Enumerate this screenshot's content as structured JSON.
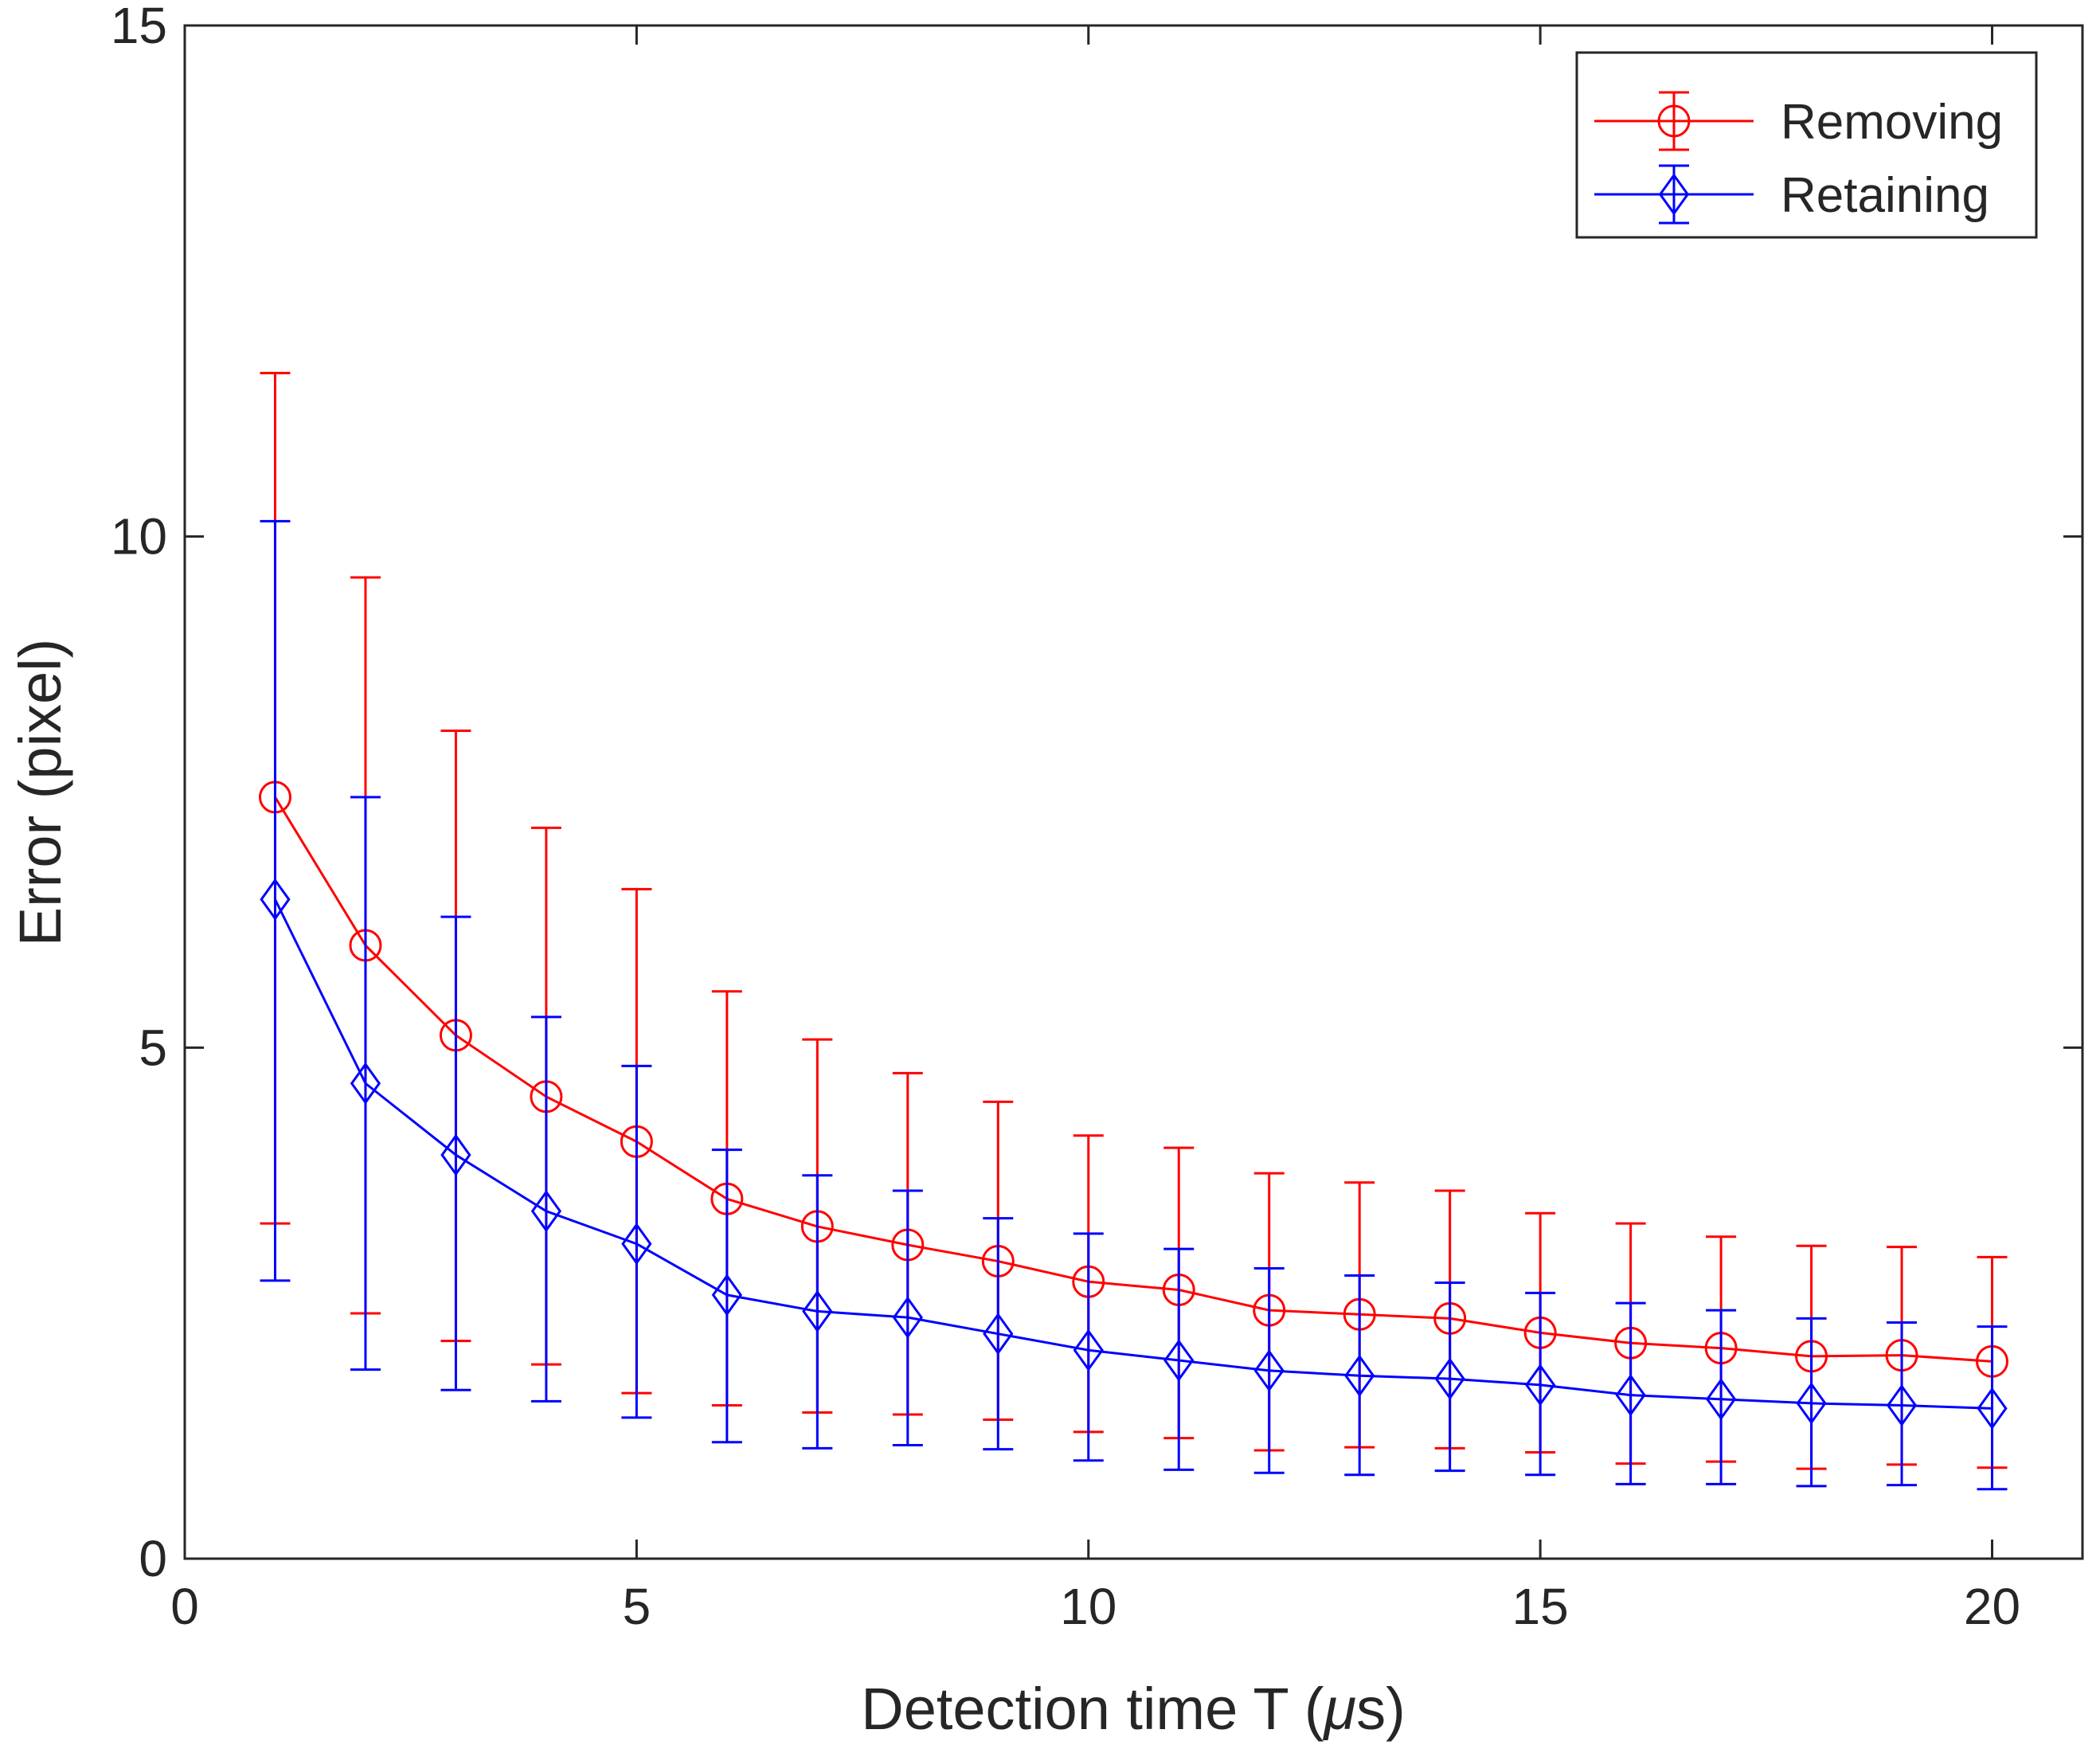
{
  "chart_data": {
    "type": "line",
    "title": "",
    "xlabel": "Detection time T (",
    "xlabel_symbol": "μ",
    "xlabel_suffix": "s)",
    "ylabel": "Error (pixel)",
    "xlim": [
      0,
      21
    ],
    "ylim": [
      0,
      15
    ],
    "xticks": [
      0,
      5,
      10,
      15,
      20
    ],
    "yticks": [
      0,
      5,
      10,
      15
    ],
    "grid": false,
    "legend_position": "top-right",
    "x": [
      1,
      2,
      3,
      4,
      5,
      6,
      7,
      8,
      9,
      10,
      11,
      12,
      13,
      14,
      15,
      16,
      17,
      18,
      19,
      20
    ],
    "series": [
      {
        "name": "Removing",
        "color": "#ff0000",
        "marker": "circle",
        "values": [
          7.45,
          6.0,
          5.12,
          4.52,
          4.08,
          3.52,
          3.25,
          3.07,
          2.91,
          2.71,
          2.63,
          2.43,
          2.39,
          2.35,
          2.21,
          2.11,
          2.06,
          1.98,
          1.99,
          1.93
        ],
        "upper": [
          11.6,
          9.6,
          8.1,
          7.15,
          6.55,
          5.55,
          5.08,
          4.75,
          4.47,
          4.14,
          4.02,
          3.77,
          3.68,
          3.6,
          3.38,
          3.28,
          3.15,
          3.06,
          3.05,
          2.95
        ],
        "lower": [
          3.28,
          2.4,
          2.13,
          1.9,
          1.62,
          1.5,
          1.43,
          1.41,
          1.36,
          1.24,
          1.18,
          1.06,
          1.09,
          1.08,
          1.04,
          0.93,
          0.95,
          0.88,
          0.92,
          0.89
        ]
      },
      {
        "name": "Retaining",
        "color": "#0000ff",
        "marker": "diamond",
        "values": [
          6.45,
          4.65,
          3.95,
          3.4,
          3.08,
          2.58,
          2.42,
          2.36,
          2.2,
          2.04,
          1.94,
          1.84,
          1.79,
          1.76,
          1.7,
          1.6,
          1.56,
          1.52,
          1.5,
          1.47
        ],
        "upper": [
          10.15,
          7.45,
          6.28,
          5.3,
          4.82,
          4.0,
          3.75,
          3.6,
          3.33,
          3.18,
          3.03,
          2.84,
          2.77,
          2.7,
          2.6,
          2.5,
          2.43,
          2.35,
          2.31,
          2.27
        ],
        "lower": [
          2.72,
          1.85,
          1.65,
          1.54,
          1.38,
          1.14,
          1.08,
          1.11,
          1.07,
          0.96,
          0.87,
          0.84,
          0.82,
          0.86,
          0.82,
          0.73,
          0.73,
          0.71,
          0.72,
          0.68
        ]
      }
    ]
  }
}
